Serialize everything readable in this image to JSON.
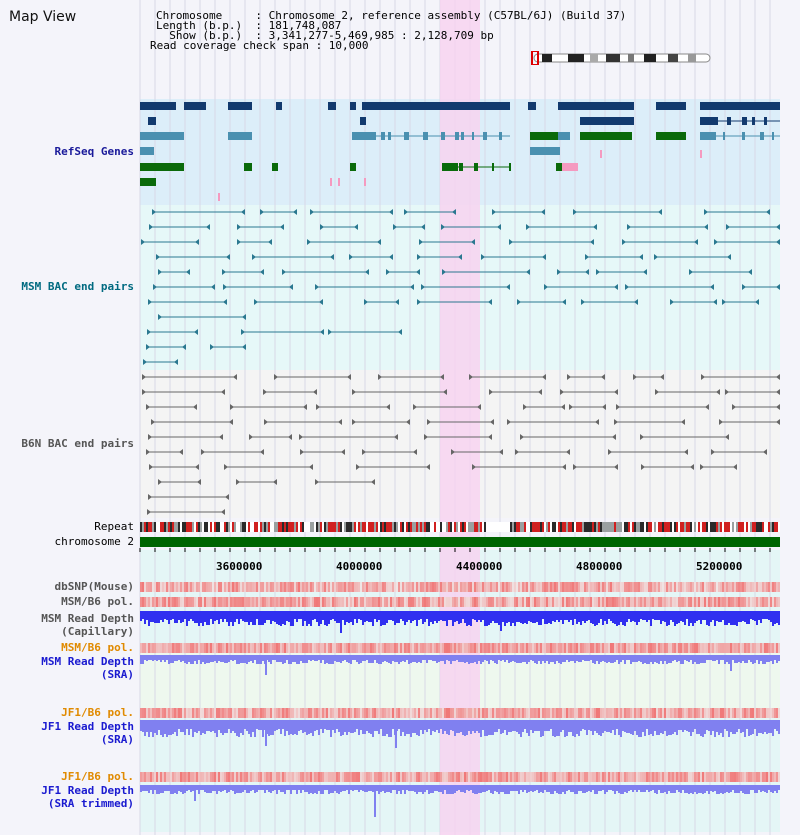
{
  "view": {
    "title": "Map View",
    "info_lines": [
      "Chromosome     : Chromosome 2, reference assembly (C57BL/6J) (Build 37)",
      "Length (b.p.)  : 181,748,087",
      "  Show (b.p.)  : 3,341,277-5,469,985 : 2,128,709 bp",
      "Read coverage check span : 10,000"
    ]
  },
  "tracks": {
    "refseq": "RefSeq Genes",
    "msm_bac": "MSM BAC end pairs",
    "b6n_bac": "B6N BAC end pairs",
    "repeat": "Repeat",
    "chromosome": "chromosome 2",
    "dbsnp": "dbSNP(Mouse)",
    "msm_pol1": "MSM/B6 pol.",
    "msm_depth_cap_1": "MSM Read Depth",
    "msm_depth_cap_2": "(Capillary)",
    "msm_pol2": "MSM/B6 pol.",
    "msm_depth_sra_1": "MSM Read Depth",
    "msm_depth_sra_2": "(SRA)",
    "jf1_pol1": "JF1/B6 pol.",
    "jf1_depth_sra_1": "JF1 Read Depth",
    "jf1_depth_sra_2": "(SRA)",
    "jf1_pol2": "JF1/B6 pol.",
    "jf1_depth_trim_1": "JF1 Read Depth",
    "jf1_depth_trim_2": "(SRA trimmed)"
  },
  "axis": {
    "ticks": [
      "3600000",
      "4000000",
      "4400000",
      "4800000",
      "5200000"
    ]
  },
  "colors": {
    "refseq_bg": "#dceef9",
    "msm_bg": "#e6f8f8",
    "highlight": "#f7d4f0",
    "navy": "#123a6e",
    "steel": "#4a90b0",
    "green": "#0a6a0a",
    "chromosome": "#006400",
    "pol_red": "#f05050",
    "depth_blue": "#3030f0",
    "depth_light": "#8080f0"
  }
}
